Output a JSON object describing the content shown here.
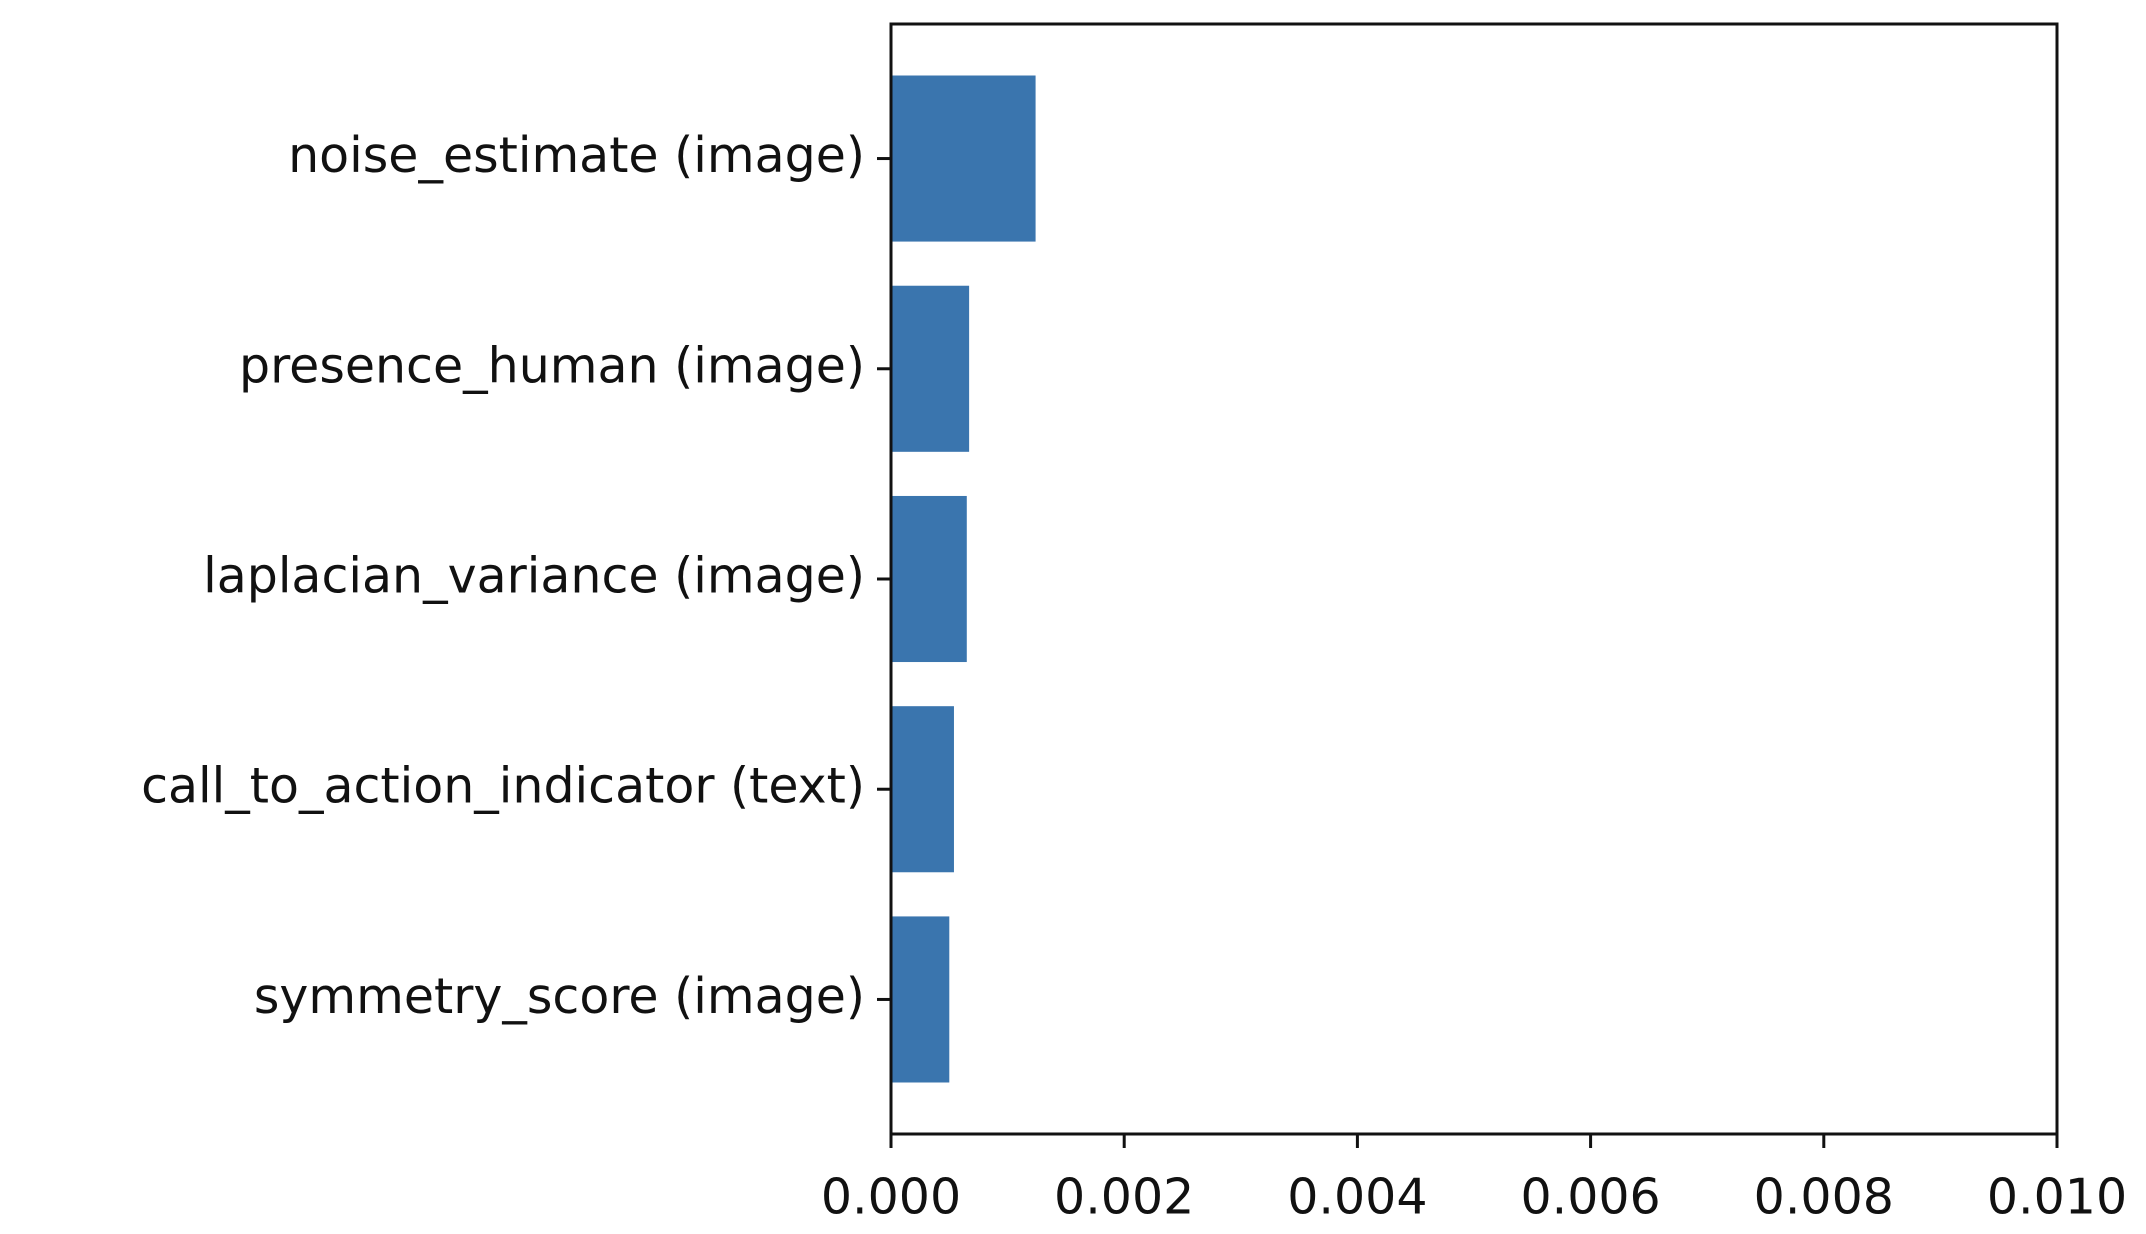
{
  "chart_data": {
    "type": "barh",
    "categories": [
      "noise_estimate (image)",
      "presence_human (image)",
      "laplacian_variance (image)",
      "call_to_action_indicator (text)",
      "symmetry_score (image)"
    ],
    "values": [
      0.00124,
      0.00067,
      0.00065,
      0.00054,
      0.0005
    ],
    "color": "#3a75ae",
    "xlim": [
      0,
      0.01
    ],
    "xticks": [
      {
        "value": 0,
        "label": "0.000"
      },
      {
        "value": 0.002,
        "label": "0.002"
      },
      {
        "value": 0.004,
        "label": "0.004"
      },
      {
        "value": 0.006,
        "label": "0.006"
      },
      {
        "value": 0.008,
        "label": "0.008"
      },
      {
        "value": 0.01,
        "label": "0.010"
      }
    ],
    "grid": false
  }
}
